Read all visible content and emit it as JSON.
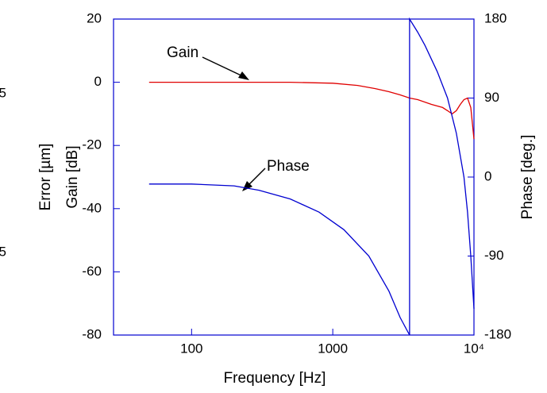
{
  "chart_data": {
    "type": "line",
    "xlabel": "Frequency [Hz]",
    "ylabel": "Gain [dB]",
    "y2label": "Phase [deg.]",
    "extra_labels": [
      "Error [µm]",
      "5",
      "5"
    ],
    "xscale": "log",
    "xlim": [
      28,
      10000
    ],
    "xticks": [
      100,
      1000,
      {
        "value": 10000,
        "label": "10⁴"
      }
    ],
    "ylim": [
      -80,
      20
    ],
    "yticks": [
      -80,
      -60,
      -40,
      -20,
      0,
      20
    ],
    "y2lim": [
      -180,
      180
    ],
    "y2ticks": [
      -180,
      -90,
      0,
      90,
      180
    ],
    "series": [
      {
        "name": "Gain",
        "color": "#e00000",
        "x": [
          50,
          100,
          200,
          500,
          1000,
          1500,
          2000,
          2500,
          3000,
          3500,
          4000,
          5000,
          6000,
          6500,
          7000,
          7500,
          8000,
          8500,
          9000,
          9500,
          10000
        ],
        "values": [
          0,
          0,
          0,
          0,
          -0.3,
          -1,
          -2,
          -3,
          -4,
          -5,
          -5.5,
          -7,
          -8,
          -9,
          -10,
          -9,
          -7,
          -5.5,
          -5,
          -8,
          -18
        ]
      },
      {
        "name": "Phase",
        "color": "#0000d0",
        "axis": "y2",
        "x": [
          50,
          100,
          200,
          300,
          500,
          800,
          1200,
          1800,
          2500,
          3000,
          3500,
          3500,
          4000,
          4500,
          5500,
          6500,
          7500,
          8500,
          9000,
          9500,
          10000
        ],
        "values": [
          -8,
          -8,
          -10,
          -15,
          -25,
          -40,
          -60,
          -90,
          -130,
          -160,
          -180,
          180,
          165,
          150,
          120,
          90,
          50,
          0,
          -40,
          -90,
          -150
        ]
      }
    ],
    "annotations": [
      "Gain",
      "Phase"
    ]
  }
}
